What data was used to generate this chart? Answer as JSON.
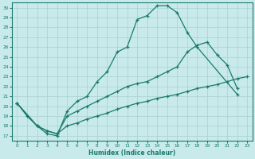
{
  "xlabel": "Humidex (Indice chaleur)",
  "background_color": "#c8eaea",
  "grid_color": "#aacfcf",
  "line_color": "#1a7a6e",
  "xlim": [
    -0.5,
    23.5
  ],
  "ylim": [
    16.5,
    30.5
  ],
  "xticks": [
    0,
    1,
    2,
    3,
    4,
    5,
    6,
    7,
    8,
    9,
    10,
    11,
    12,
    13,
    14,
    15,
    16,
    17,
    18,
    19,
    20,
    21,
    22,
    23
  ],
  "yticks": [
    17,
    18,
    19,
    20,
    21,
    22,
    23,
    24,
    25,
    26,
    27,
    28,
    29,
    30
  ],
  "line1_x": [
    0,
    1,
    2,
    3,
    4,
    5,
    6,
    7,
    8,
    9,
    10,
    11,
    12,
    13,
    14,
    15,
    16,
    17,
    18,
    22
  ],
  "line1_y": [
    20.3,
    19.0,
    18.0,
    17.2,
    17.0,
    19.5,
    20.5,
    21.0,
    22.5,
    23.5,
    25.5,
    26.0,
    28.8,
    29.2,
    30.2,
    30.2,
    29.5,
    27.5,
    26.0,
    21.2
  ],
  "line2_x": [
    0,
    2,
    3,
    4,
    5,
    6,
    7,
    8,
    9,
    10,
    11,
    12,
    13,
    14,
    15,
    16,
    17,
    18,
    19,
    20,
    21,
    22
  ],
  "line2_y": [
    20.3,
    18.0,
    17.5,
    17.2,
    19.0,
    19.5,
    20.0,
    20.5,
    21.0,
    21.5,
    22.0,
    22.3,
    22.5,
    23.0,
    23.5,
    24.0,
    25.5,
    26.2,
    26.5,
    25.2,
    24.2,
    21.8
  ],
  "line3_x": [
    0,
    2,
    3,
    4,
    5,
    6,
    7,
    8,
    9,
    10,
    11,
    12,
    13,
    14,
    15,
    16,
    17,
    18,
    19,
    20,
    21,
    22,
    23
  ],
  "line3_y": [
    20.3,
    18.0,
    17.5,
    17.2,
    18.0,
    18.3,
    18.7,
    19.0,
    19.3,
    19.7,
    20.0,
    20.3,
    20.5,
    20.8,
    21.0,
    21.2,
    21.5,
    21.8,
    22.0,
    22.2,
    22.5,
    22.8,
    23.0
  ]
}
